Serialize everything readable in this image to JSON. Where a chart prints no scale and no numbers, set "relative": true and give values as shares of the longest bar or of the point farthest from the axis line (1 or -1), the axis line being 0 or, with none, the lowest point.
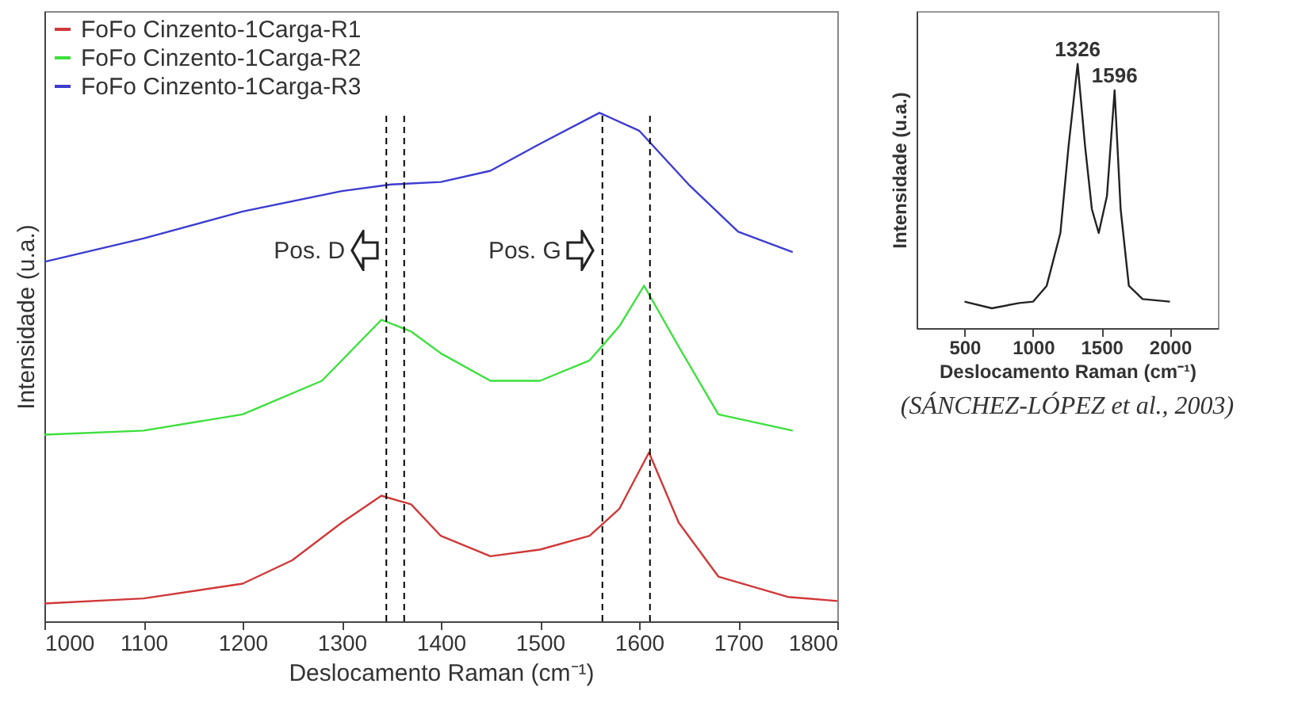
{
  "chart_data": [
    {
      "type": "line",
      "xlabel": "Deslocamento Raman (cm⁻¹)",
      "ylabel": "Intensidade (u.a.)",
      "relative": true,
      "xlim": [
        1000,
        1800
      ],
      "xticks": [
        1000,
        1100,
        1200,
        1300,
        1400,
        1500,
        1600,
        1700,
        1800
      ],
      "legend": "top left",
      "grid": false,
      "series": [
        {
          "name": "FoFo Cinzento-1Carga-R1",
          "color": "#d03838",
          "x": [
            1000,
            1100,
            1200,
            1250,
            1300,
            1340,
            1370,
            1400,
            1450,
            1500,
            1550,
            1580,
            1610,
            1640,
            1680,
            1750,
            1800
          ],
          "values": [
            0.035,
            0.045,
            0.074,
            0.12,
            0.194,
            0.247,
            0.23,
            0.168,
            0.128,
            0.141,
            0.168,
            0.221,
            0.332,
            0.194,
            0.088,
            0.048,
            0.04
          ]
        },
        {
          "name": "FoFo Cinzento-1Carga-R2",
          "color": "#3ce03c",
          "x": [
            1000,
            1100,
            1200,
            1280,
            1340,
            1370,
            1400,
            1450,
            1500,
            1550,
            1580,
            1605,
            1640,
            1680,
            1755
          ],
          "values": [
            0.367,
            0.375,
            0.407,
            0.473,
            0.593,
            0.57,
            0.527,
            0.473,
            0.473,
            0.513,
            0.58,
            0.66,
            0.54,
            0.407,
            0.375
          ]
        },
        {
          "name": "FoFo Cinzento-1Carga-R3",
          "color": "#3c3cd0",
          "x": [
            1000,
            1100,
            1200,
            1300,
            1350,
            1400,
            1450,
            1500,
            1560,
            1600,
            1650,
            1700,
            1755
          ],
          "values": [
            0.707,
            0.753,
            0.806,
            0.846,
            0.859,
            0.864,
            0.886,
            0.939,
            1,
            0.965,
            0.859,
            0.766,
            0.726
          ]
        }
      ],
      "ref_lines": [
        {
          "axis": "x",
          "value": 1345,
          "color": "#000000",
          "line_style": "dashed"
        },
        {
          "axis": "x",
          "value": 1363,
          "color": "#000000",
          "line_style": "dashed"
        },
        {
          "axis": "x",
          "value": 1563,
          "color": "#000000",
          "line_style": "dashed"
        },
        {
          "axis": "x",
          "value": 1611,
          "color": "#000000",
          "line_style": "dashed"
        }
      ],
      "annotations": [
        "Pos. D",
        "Pos. G"
      ]
    },
    {
      "type": "line",
      "xlabel": "Deslocamento Raman (cm⁻¹)",
      "ylabel": "Intensidade (u.a.)",
      "relative": true,
      "xlim": [
        150,
        2350
      ],
      "xticks": [
        500,
        1000,
        1500,
        2000
      ],
      "legend": false,
      "grid": false,
      "series": [
        {
          "color": "#222222",
          "x": [
            500,
            700,
            900,
            1000,
            1100,
            1200,
            1260,
            1326,
            1380,
            1430,
            1480,
            1540,
            1596,
            1640,
            1700,
            1800,
            2000
          ],
          "values": [
            0.1,
            0.075,
            0.095,
            0.1,
            0.16,
            0.36,
            0.69,
            1,
            0.69,
            0.45,
            0.36,
            0.5,
            0.9,
            0.45,
            0.16,
            0.11,
            0.1
          ]
        }
      ],
      "annotations": [
        {
          "text": "1326",
          "x": 1326,
          "y": 1
        },
        {
          "text": "1596",
          "x": 1596,
          "y": 0.9
        },
        "(SÁNCHEZ-LÓPEZ et al., 2003)"
      ]
    }
  ]
}
